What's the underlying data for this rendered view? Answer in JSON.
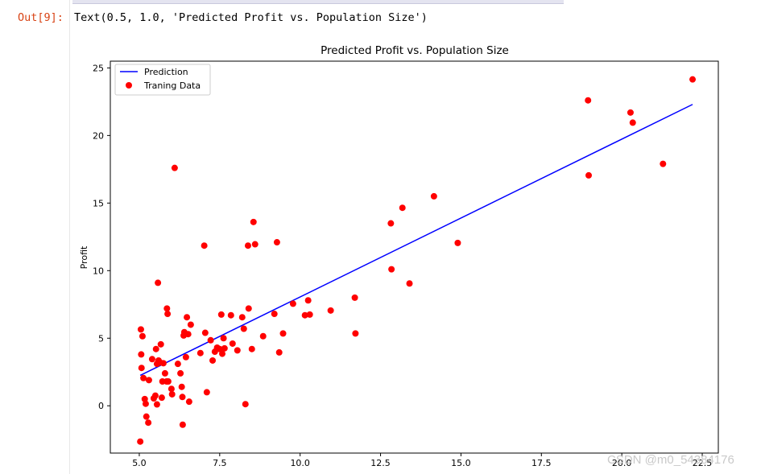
{
  "cell": {
    "prompt": "Out[9]:",
    "output_text": "Text(0.5, 1.0, 'Predicted Profit vs. Population Size')"
  },
  "watermark": "CSDN @m0_54384176",
  "chart_data": {
    "type": "scatter",
    "title": "Predicted Profit vs. Population Size",
    "xlabel": "",
    "ylabel": "Profit",
    "xlim": [
      4.1,
      23.0
    ],
    "ylim": [
      -3.5,
      25.5
    ],
    "xticks": [
      5.0,
      7.5,
      10.0,
      12.5,
      15.0,
      17.5,
      20.0,
      22.5
    ],
    "xtick_labels": [
      "5.0",
      "7.5",
      "10.0",
      "12.5",
      "15.0",
      "17.5",
      "20.0",
      "22.5"
    ],
    "yticks": [
      0,
      5,
      10,
      15,
      20,
      25
    ],
    "ytick_labels": [
      "0",
      "5",
      "10",
      "15",
      "20",
      "25"
    ],
    "grid": false,
    "legend_position": "top-left",
    "series": [
      {
        "name": "Prediction",
        "kind": "line",
        "color": "#0000ff",
        "x": [
          5.03,
          22.2
        ],
        "y": [
          2.25,
          22.3
        ]
      },
      {
        "name": "Traning Data",
        "kind": "scatter",
        "color": "#ff0000",
        "x": [
          5.03,
          5.05,
          5.06,
          5.07,
          5.1,
          5.13,
          5.17,
          5.2,
          5.22,
          5.28,
          5.3,
          5.4,
          5.45,
          5.5,
          5.52,
          5.55,
          5.55,
          5.58,
          5.6,
          5.65,
          5.67,
          5.7,
          5.72,
          5.75,
          5.8,
          5.85,
          5.86,
          5.88,
          5.9,
          6.0,
          6.02,
          6.1,
          6.2,
          6.28,
          6.32,
          6.34,
          6.35,
          6.38,
          6.4,
          6.45,
          6.48,
          6.52,
          6.55,
          6.6,
          6.9,
          7.02,
          7.05,
          7.1,
          7.22,
          7.28,
          7.35,
          7.42,
          7.5,
          7.55,
          7.58,
          7.62,
          7.65,
          7.85,
          7.9,
          8.05,
          8.2,
          8.25,
          8.3,
          8.38,
          8.4,
          8.5,
          8.55,
          8.6,
          8.85,
          9.2,
          9.28,
          9.35,
          9.47,
          9.78,
          10.15,
          10.25,
          10.3,
          10.95,
          11.7,
          11.72,
          12.82,
          12.84,
          13.18,
          13.4,
          14.16,
          14.9,
          18.95,
          18.97,
          20.27,
          20.34,
          21.28,
          22.2
        ],
        "y": [
          -2.65,
          5.65,
          3.8,
          2.8,
          5.15,
          2.05,
          0.5,
          0.15,
          -0.8,
          -1.25,
          1.9,
          3.45,
          0.55,
          0.75,
          4.2,
          3.1,
          0.1,
          9.1,
          3.35,
          3.2,
          4.55,
          0.6,
          1.8,
          3.15,
          2.4,
          1.8,
          7.2,
          6.8,
          1.8,
          1.25,
          0.85,
          17.6,
          3.1,
          2.4,
          1.4,
          0.65,
          -1.4,
          5.2,
          5.45,
          3.6,
          6.55,
          5.3,
          0.3,
          6.0,
          3.9,
          11.85,
          5.4,
          1.0,
          4.85,
          3.35,
          4.0,
          4.3,
          4.2,
          6.75,
          3.85,
          5.0,
          4.25,
          6.7,
          4.6,
          4.1,
          6.55,
          5.7,
          0.12,
          11.85,
          7.2,
          4.2,
          13.6,
          11.95,
          5.15,
          6.8,
          12.1,
          3.95,
          5.35,
          7.55,
          6.7,
          7.8,
          6.75,
          7.05,
          8.0,
          5.35,
          13.5,
          10.1,
          14.65,
          9.05,
          15.5,
          12.05,
          22.6,
          17.05,
          21.7,
          20.95,
          17.9,
          24.15
        ]
      }
    ]
  }
}
